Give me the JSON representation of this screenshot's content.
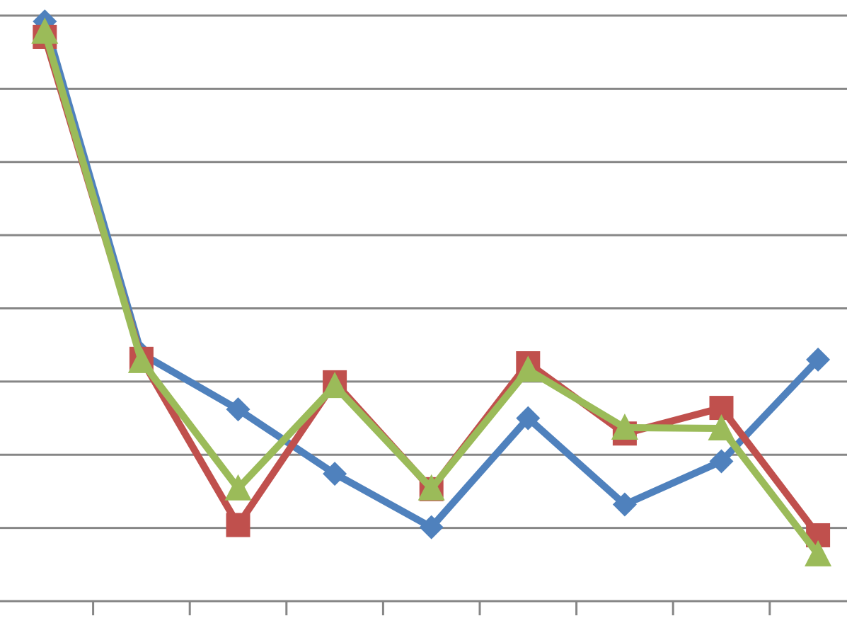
{
  "chart_data": {
    "type": "line",
    "categories": [
      null,
      null,
      null,
      null,
      null,
      null,
      null,
      null,
      null
    ],
    "series": [
      {
        "color": "#4f81bd",
        "marker": "diamond",
        "values": [
          7.92,
          3.38,
          2.62,
          1.74,
          1.01,
          2.5,
          1.32,
          1.91,
          3.3
        ]
      },
      {
        "color": "#c0504d",
        "marker": "square",
        "values": [
          7.71,
          3.31,
          1.04,
          2.99,
          1.53,
          3.25,
          2.29,
          2.64,
          0.9
        ]
      },
      {
        "color": "#9bbb59",
        "marker": "triangle",
        "values": [
          7.78,
          3.28,
          1.54,
          2.94,
          1.54,
          3.16,
          2.37,
          2.36,
          0.64
        ]
      }
    ],
    "ylim": [
      0,
      8
    ],
    "yticks": [
      0,
      1,
      2,
      3,
      4,
      5,
      6,
      7,
      8
    ],
    "grid": true
  }
}
